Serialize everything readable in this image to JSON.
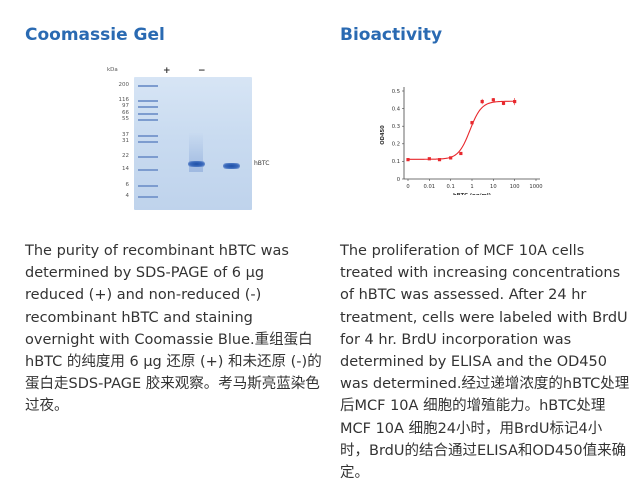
{
  "left": {
    "heading": "Coomassie Gel",
    "gel": {
      "kda_label": "kDa",
      "lane_reduced": "+",
      "lane_nonreduced": "−",
      "mw_markers": [
        "200",
        "116",
        "97",
        "66",
        "55",
        "37",
        "31",
        "22",
        "14",
        "6",
        "4"
      ],
      "band_label": "hBTC"
    },
    "description": "The purity of recombinant hBTC was determined by SDS-PAGE of 6 µg reduced (+) and non-reduced (-) recombinant hBTC and staining overnight with Coomassie Blue.重组蛋白hBTC 的纯度用 6 µg 还原 (+) 和未还原 (-)的蛋白走SDS-PAGE 胶来观察。考马斯亮蓝染色过夜。"
  },
  "right": {
    "heading": "Bioactivity",
    "description": "The proliferation of MCF 10A cells treated with increasing concentrations of hBTC was assessed. After 24 hr treatment, cells were labeled with BrdU for 4 hr. BrdU incorporation was determined by ELISA and the OD450 was determined.经过递增浓度的hBTC处理后MCF 10A 细胞的增殖能力。hBTC处理MCF 10A 细胞24小时，用BrdU标记4小时，BrdU的结合通过ELISA和OD450值来确定。"
  },
  "chart_data": {
    "type": "scatter",
    "title": "",
    "xlabel": "hBTC (ng/ml)",
    "ylabel": "OD450",
    "x_scale": "log",
    "x_ticks": [
      "0",
      "0.01",
      "0.1",
      "1",
      "10",
      "100",
      "1000"
    ],
    "y_ticks": [
      "0",
      "0.1",
      "0.2",
      "0.3",
      "0.4",
      "0.5"
    ],
    "ylim": [
      0,
      0.5
    ],
    "series": [
      {
        "x": [
          0.001,
          0.01,
          0.03,
          0.1,
          0.3,
          1,
          3,
          10,
          30,
          100
        ],
        "y": [
          0.11,
          0.115,
          0.11,
          0.12,
          0.145,
          0.32,
          0.44,
          0.45,
          0.43,
          0.44
        ],
        "error": [
          0.005,
          0.005,
          0.005,
          0.006,
          0.008,
          0.01,
          0.015,
          0.01,
          0.01,
          0.02
        ],
        "fit": "sigmoidal"
      }
    ],
    "color": "#e8282d",
    "grid": false,
    "legend": "none"
  }
}
